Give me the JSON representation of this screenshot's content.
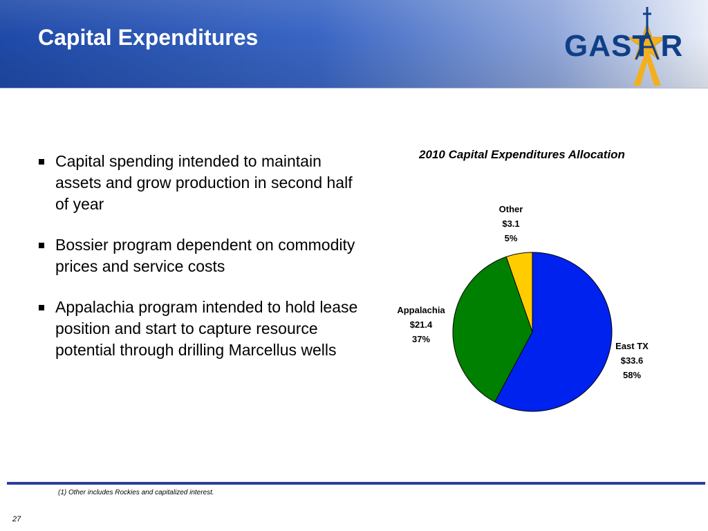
{
  "header": {
    "title": "Capital Expenditures",
    "logo_text": "GAST R"
  },
  "bullets": [
    "Capital spending intended to maintain assets and grow production in second half of year",
    "Bossier program dependent on commodity prices and service costs",
    "Appalachia program intended to hold lease position and start to capture resource potential through drilling Marcellus wells"
  ],
  "colors": {
    "east_tx": "#0022ee",
    "appalachia": "#008000",
    "other": "#ffcc00",
    "header_blue": "#1f4aa8",
    "logo_blue": "#0e3f87",
    "logo_gold": "#f2b01e"
  },
  "chart_data": {
    "type": "pie",
    "title": "2010 Capital Expenditures Allocation",
    "slices": [
      {
        "label": "East TX",
        "amount": "$33.6",
        "percent": "58%",
        "value": 33.6,
        "color": "#0022ee"
      },
      {
        "label": "Appalachia",
        "amount": "$21.4",
        "percent": "37%",
        "value": 21.4,
        "color": "#008000"
      },
      {
        "label": "Other",
        "amount": "$3.1",
        "percent": "5%",
        "value": 3.1,
        "color": "#ffcc00"
      }
    ]
  },
  "footer": {
    "footnote": "(1) Other includes Rockies and capitalized interest.",
    "page_number": "27"
  }
}
